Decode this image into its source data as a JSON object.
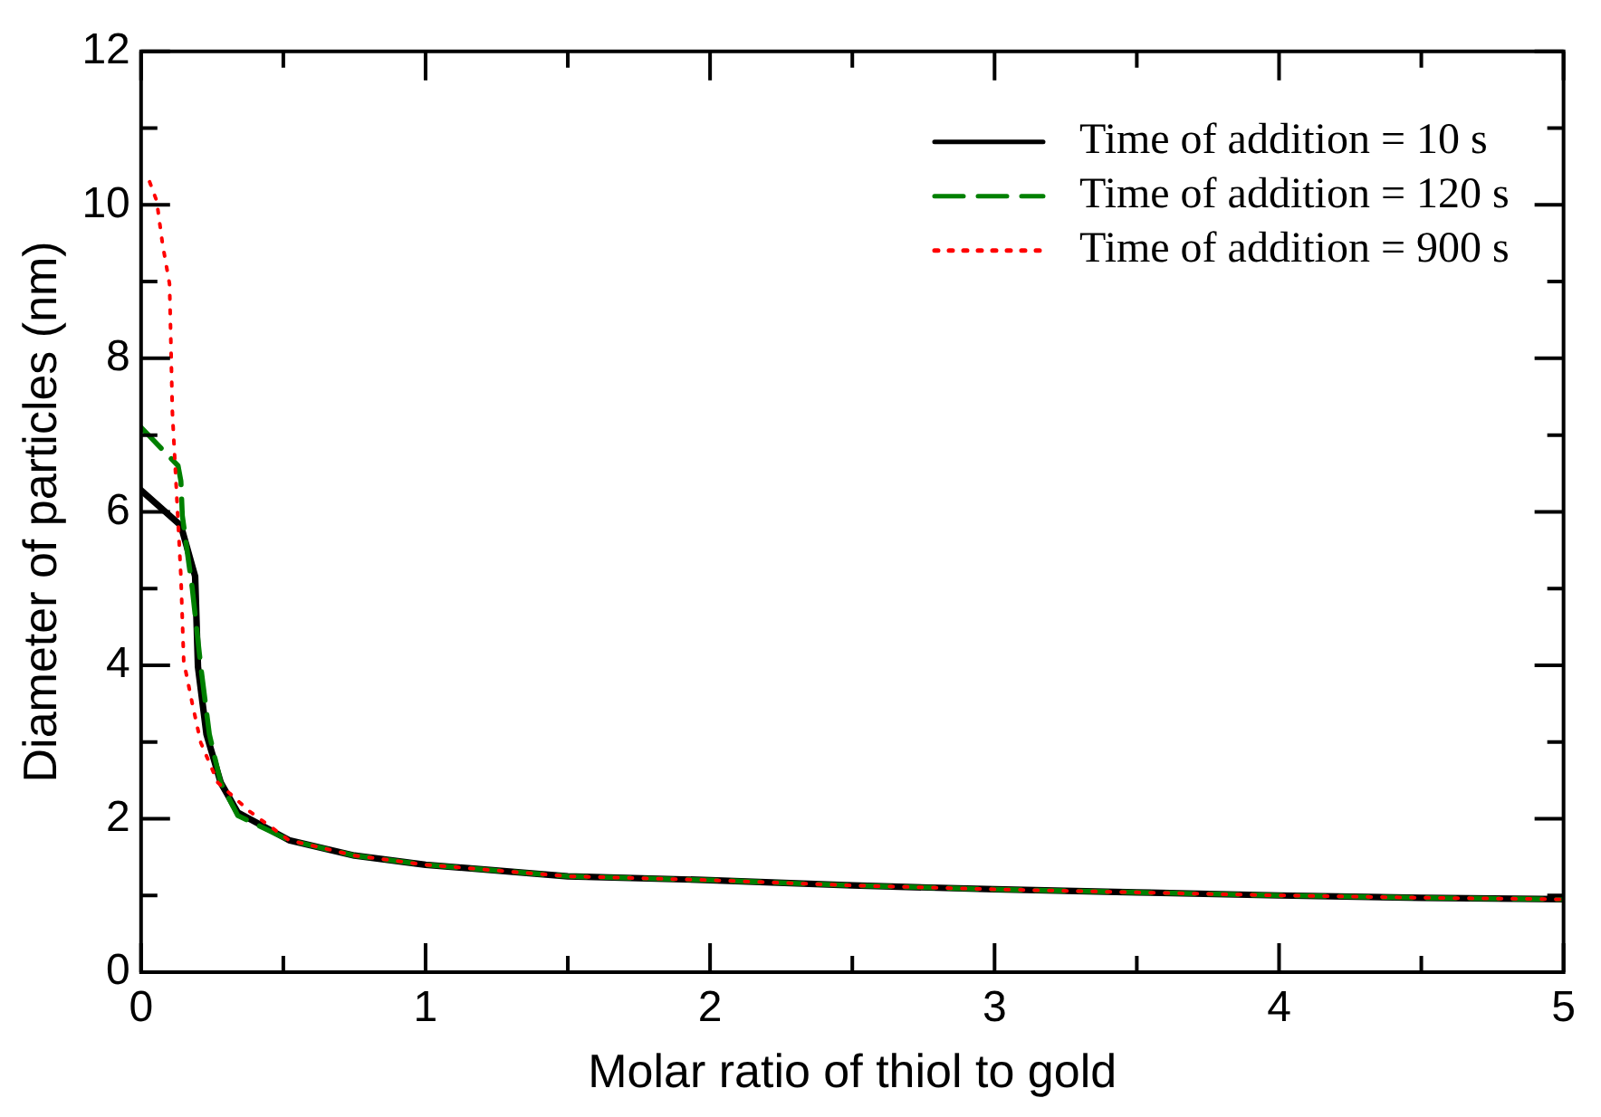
{
  "chart_data": {
    "type": "line",
    "xlabel": "Molar ratio of thiol to gold",
    "ylabel": "Diameter of particles (nm)",
    "xlim": [
      0,
      5
    ],
    "xticks": [
      0,
      {
        "value": 0.5,
        "label": null
      },
      1,
      {
        "value": 1.5,
        "label": null
      },
      2,
      {
        "value": 2.5,
        "label": null
      },
      3,
      {
        "value": 3.5,
        "label": null
      },
      4,
      {
        "value": 4.5,
        "label": null
      },
      5
    ],
    "ylim": [
      0,
      12
    ],
    "yticks": [
      0,
      {
        "value": 1,
        "label": null
      },
      2,
      {
        "value": 3,
        "label": null
      },
      4,
      {
        "value": 5,
        "label": null
      },
      6,
      {
        "value": 7,
        "label": null
      },
      8,
      {
        "value": 9,
        "label": null
      },
      10,
      {
        "value": 11,
        "label": null
      },
      12
    ],
    "grid": false,
    "legend": "top right",
    "marker": "none",
    "series": [
      {
        "name": "Time of addition = 10 s",
        "color": "#000000",
        "line_style": "solid",
        "x": [
          0,
          0.14,
          0.19,
          0.2,
          0.23,
          0.28,
          0.34,
          0.52,
          0.75,
          1,
          1.5,
          2,
          2.5,
          3,
          3.5,
          4,
          4.5,
          5
        ],
        "values": [
          6.28,
          5.82,
          5.16,
          3.98,
          3.1,
          2.47,
          2.08,
          1.72,
          1.52,
          1.4,
          1.25,
          1.2,
          1.13,
          1.08,
          1.04,
          1.0,
          0.97,
          0.95
        ]
      },
      {
        "name": "Time of addition = 120 s",
        "color": "#008000",
        "line_style": "dashed",
        "x": [
          0,
          0.13,
          0.14,
          0.145,
          0.18,
          0.21,
          0.24,
          0.28,
          0.34,
          0.52,
          0.75,
          1,
          1.5,
          2,
          2.5,
          3,
          3.5,
          4,
          4.5,
          5
        ],
        "values": [
          7.1,
          6.6,
          6.4,
          5.95,
          5.0,
          3.98,
          3.1,
          2.47,
          2.04,
          1.72,
          1.52,
          1.4,
          1.25,
          1.2,
          1.13,
          1.08,
          1.04,
          1.0,
          0.97,
          0.95
        ]
      },
      {
        "name": "Time of addition = 900 s",
        "color": "#ff0000",
        "line_style": "dotted",
        "x": [
          0.03,
          0.055,
          0.075,
          0.1,
          0.105,
          0.11,
          0.125,
          0.14,
          0.15,
          0.18,
          0.21,
          0.27,
          0.38,
          0.52,
          0.75,
          1,
          1.5,
          2,
          2.5,
          3,
          3.5,
          4,
          4.5,
          5
        ],
        "values": [
          10.3,
          10.05,
          9.5,
          8.97,
          8.17,
          7.3,
          6.23,
          5.16,
          4.05,
          3.5,
          2.99,
          2.47,
          2.1,
          1.72,
          1.52,
          1.4,
          1.25,
          1.2,
          1.13,
          1.08,
          1.04,
          1.0,
          0.97,
          0.95
        ]
      }
    ]
  }
}
